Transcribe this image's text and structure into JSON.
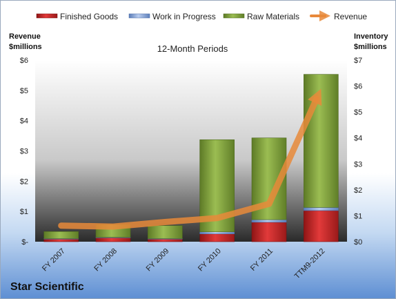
{
  "chart_data": {
    "type": "bar",
    "title": "12-Month Periods",
    "company": "Star Scientific",
    "categories": [
      "FY 2007",
      "FY 2008",
      "FY 2009",
      "FY 2010",
      "FY 2011",
      "TTM9-2012"
    ],
    "stacked": true,
    "series": [
      {
        "name": "Finished Goods",
        "axis": "right",
        "color": "#cc2a2a",
        "values": [
          0.1,
          0.15,
          0.1,
          0.3,
          0.75,
          1.2
        ]
      },
      {
        "name": "Work in Progress",
        "axis": "right",
        "color": "#7fa0d4",
        "values": [
          0.02,
          0.02,
          0.02,
          0.08,
          0.1,
          0.12
        ]
      },
      {
        "name": "Raw Materials",
        "axis": "right",
        "color": "#86a73f",
        "values": [
          0.27,
          0.5,
          0.5,
          3.55,
          3.15,
          5.13
        ]
      }
    ],
    "line_series": {
      "name": "Revenue",
      "axis": "left",
      "color": "#e8893a",
      "values": [
        0.53,
        0.5,
        0.65,
        0.78,
        1.25,
        5.05
      ]
    },
    "left_axis": {
      "title_line1": "Revenue",
      "title_line2": "$millions",
      "min": 0,
      "max": 6,
      "ticks": [
        "$-",
        "$1",
        "$2",
        "$3",
        "$4",
        "$5",
        "$6"
      ]
    },
    "right_axis": {
      "title_line1": "Inventory",
      "title_line2": "$millions",
      "min": 0,
      "max": 7,
      "ticks": [
        "$0",
        "$1",
        "$2",
        "$3",
        "$4",
        "$5",
        "$6",
        "$7"
      ]
    },
    "legend_position": "top",
    "grid": false
  }
}
